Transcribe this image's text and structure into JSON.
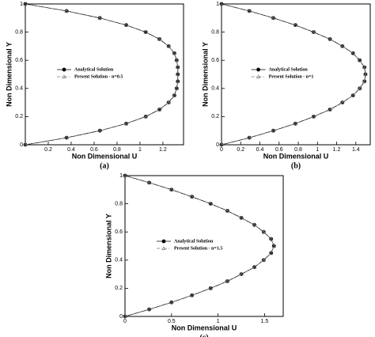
{
  "chart_data": [
    {
      "type": "line",
      "panel_label": "(a)",
      "x_label": "Non Dimensional U",
      "y_label": "Non Dimensional Y",
      "xlim": [
        0,
        1.38
      ],
      "xticks": [
        0.2,
        0.4,
        0.6,
        0.8,
        1,
        1.2
      ],
      "ylim": [
        0,
        1
      ],
      "yticks": [
        0,
        0.2,
        0.4,
        0.6,
        0.8,
        1
      ],
      "legend_position": "center",
      "series": [
        {
          "name": "Analytical Solution",
          "color": "#000000",
          "marker": "circle",
          "line": "solid",
          "y": [
            0,
            0.05,
            0.1,
            0.15,
            0.2,
            0.25,
            0.3,
            0.35,
            0.4,
            0.45,
            0.5,
            0.55,
            0.6,
            0.65,
            0.7,
            0.75,
            0.8,
            0.85,
            0.9,
            0.95,
            1
          ],
          "x": [
            0,
            0.36,
            0.65,
            0.88,
            1.05,
            1.17,
            1.25,
            1.3,
            1.32,
            1.33,
            1.33,
            1.33,
            1.32,
            1.3,
            1.25,
            1.17,
            1.05,
            0.88,
            0.65,
            0.36,
            0
          ]
        },
        {
          "name": "Present Solution - n=0.5",
          "color": "#777777",
          "marker": "triangle",
          "line": "dashdot",
          "y": [
            0,
            0.05,
            0.1,
            0.15,
            0.2,
            0.25,
            0.3,
            0.35,
            0.4,
            0.45,
            0.5,
            0.55,
            0.6,
            0.65,
            0.7,
            0.75,
            0.8,
            0.85,
            0.9,
            0.95,
            1
          ],
          "x": [
            0,
            0.36,
            0.65,
            0.88,
            1.05,
            1.17,
            1.25,
            1.3,
            1.32,
            1.33,
            1.33,
            1.33,
            1.32,
            1.3,
            1.25,
            1.17,
            1.05,
            0.88,
            0.65,
            0.36,
            0
          ]
        }
      ]
    },
    {
      "type": "line",
      "panel_label": "(b)",
      "x_label": "Non Dimensional U",
      "y_label": "Non Dimensional Y",
      "xlim": [
        0,
        1.55
      ],
      "xticks": [
        0,
        0.2,
        0.4,
        0.6,
        0.8,
        1,
        1.2,
        1.4
      ],
      "ylim": [
        0,
        1
      ],
      "yticks": [
        0,
        0.2,
        0.4,
        0.6,
        0.8,
        1
      ],
      "legend_position": "center",
      "series": [
        {
          "name": "Analytical Solution",
          "color": "#000000",
          "marker": "circle",
          "line": "solid",
          "y": [
            0,
            0.05,
            0.1,
            0.15,
            0.2,
            0.25,
            0.3,
            0.35,
            0.4,
            0.45,
            0.5,
            0.55,
            0.6,
            0.65,
            0.7,
            0.75,
            0.8,
            0.85,
            0.9,
            0.95,
            1
          ],
          "x": [
            0,
            0.29,
            0.54,
            0.77,
            0.96,
            1.13,
            1.26,
            1.37,
            1.44,
            1.49,
            1.5,
            1.49,
            1.44,
            1.37,
            1.26,
            1.13,
            0.96,
            0.77,
            0.54,
            0.29,
            0
          ]
        },
        {
          "name": "Present Solution - n=1",
          "color": "#777777",
          "marker": "triangle",
          "line": "dashdot",
          "y": [
            0,
            0.05,
            0.1,
            0.15,
            0.2,
            0.25,
            0.3,
            0.35,
            0.4,
            0.45,
            0.5,
            0.55,
            0.6,
            0.65,
            0.7,
            0.75,
            0.8,
            0.85,
            0.9,
            0.95,
            1
          ],
          "x": [
            0,
            0.29,
            0.54,
            0.77,
            0.96,
            1.13,
            1.26,
            1.37,
            1.44,
            1.49,
            1.5,
            1.49,
            1.44,
            1.37,
            1.26,
            1.13,
            0.96,
            0.77,
            0.54,
            0.29,
            0
          ]
        }
      ]
    },
    {
      "type": "line",
      "panel_label": "(c)",
      "x_label": "Non Dimensional U",
      "y_label": "Non Dimensional Y",
      "xlim": [
        0,
        1.7
      ],
      "xticks": [
        0,
        0.5,
        1,
        1.5
      ],
      "ylim": [
        0,
        1
      ],
      "yticks": [
        0,
        0.2,
        0.4,
        0.6,
        0.8,
        1
      ],
      "legend_position": "center",
      "series": [
        {
          "name": "Analytical Solution",
          "color": "#000000",
          "marker": "circle",
          "line": "solid",
          "y": [
            0,
            0.05,
            0.1,
            0.15,
            0.2,
            0.25,
            0.3,
            0.35,
            0.4,
            0.45,
            0.5,
            0.55,
            0.6,
            0.65,
            0.7,
            0.75,
            0.8,
            0.85,
            0.9,
            0.95,
            1
          ],
          "x": [
            0,
            0.26,
            0.5,
            0.72,
            0.92,
            1.1,
            1.25,
            1.39,
            1.49,
            1.57,
            1.6,
            1.57,
            1.49,
            1.39,
            1.25,
            1.1,
            0.92,
            0.72,
            0.5,
            0.26,
            0
          ]
        },
        {
          "name": "Present Solution - n=1.5",
          "color": "#777777",
          "marker": "triangle",
          "line": "dashdot",
          "y": [
            0,
            0.05,
            0.1,
            0.15,
            0.2,
            0.25,
            0.3,
            0.35,
            0.4,
            0.45,
            0.5,
            0.55,
            0.6,
            0.65,
            0.7,
            0.75,
            0.8,
            0.85,
            0.9,
            0.95,
            1
          ],
          "x": [
            0,
            0.26,
            0.5,
            0.72,
            0.92,
            1.1,
            1.25,
            1.39,
            1.49,
            1.57,
            1.6,
            1.57,
            1.49,
            1.39,
            1.25,
            1.1,
            0.92,
            0.72,
            0.5,
            0.26,
            0
          ]
        }
      ]
    }
  ]
}
